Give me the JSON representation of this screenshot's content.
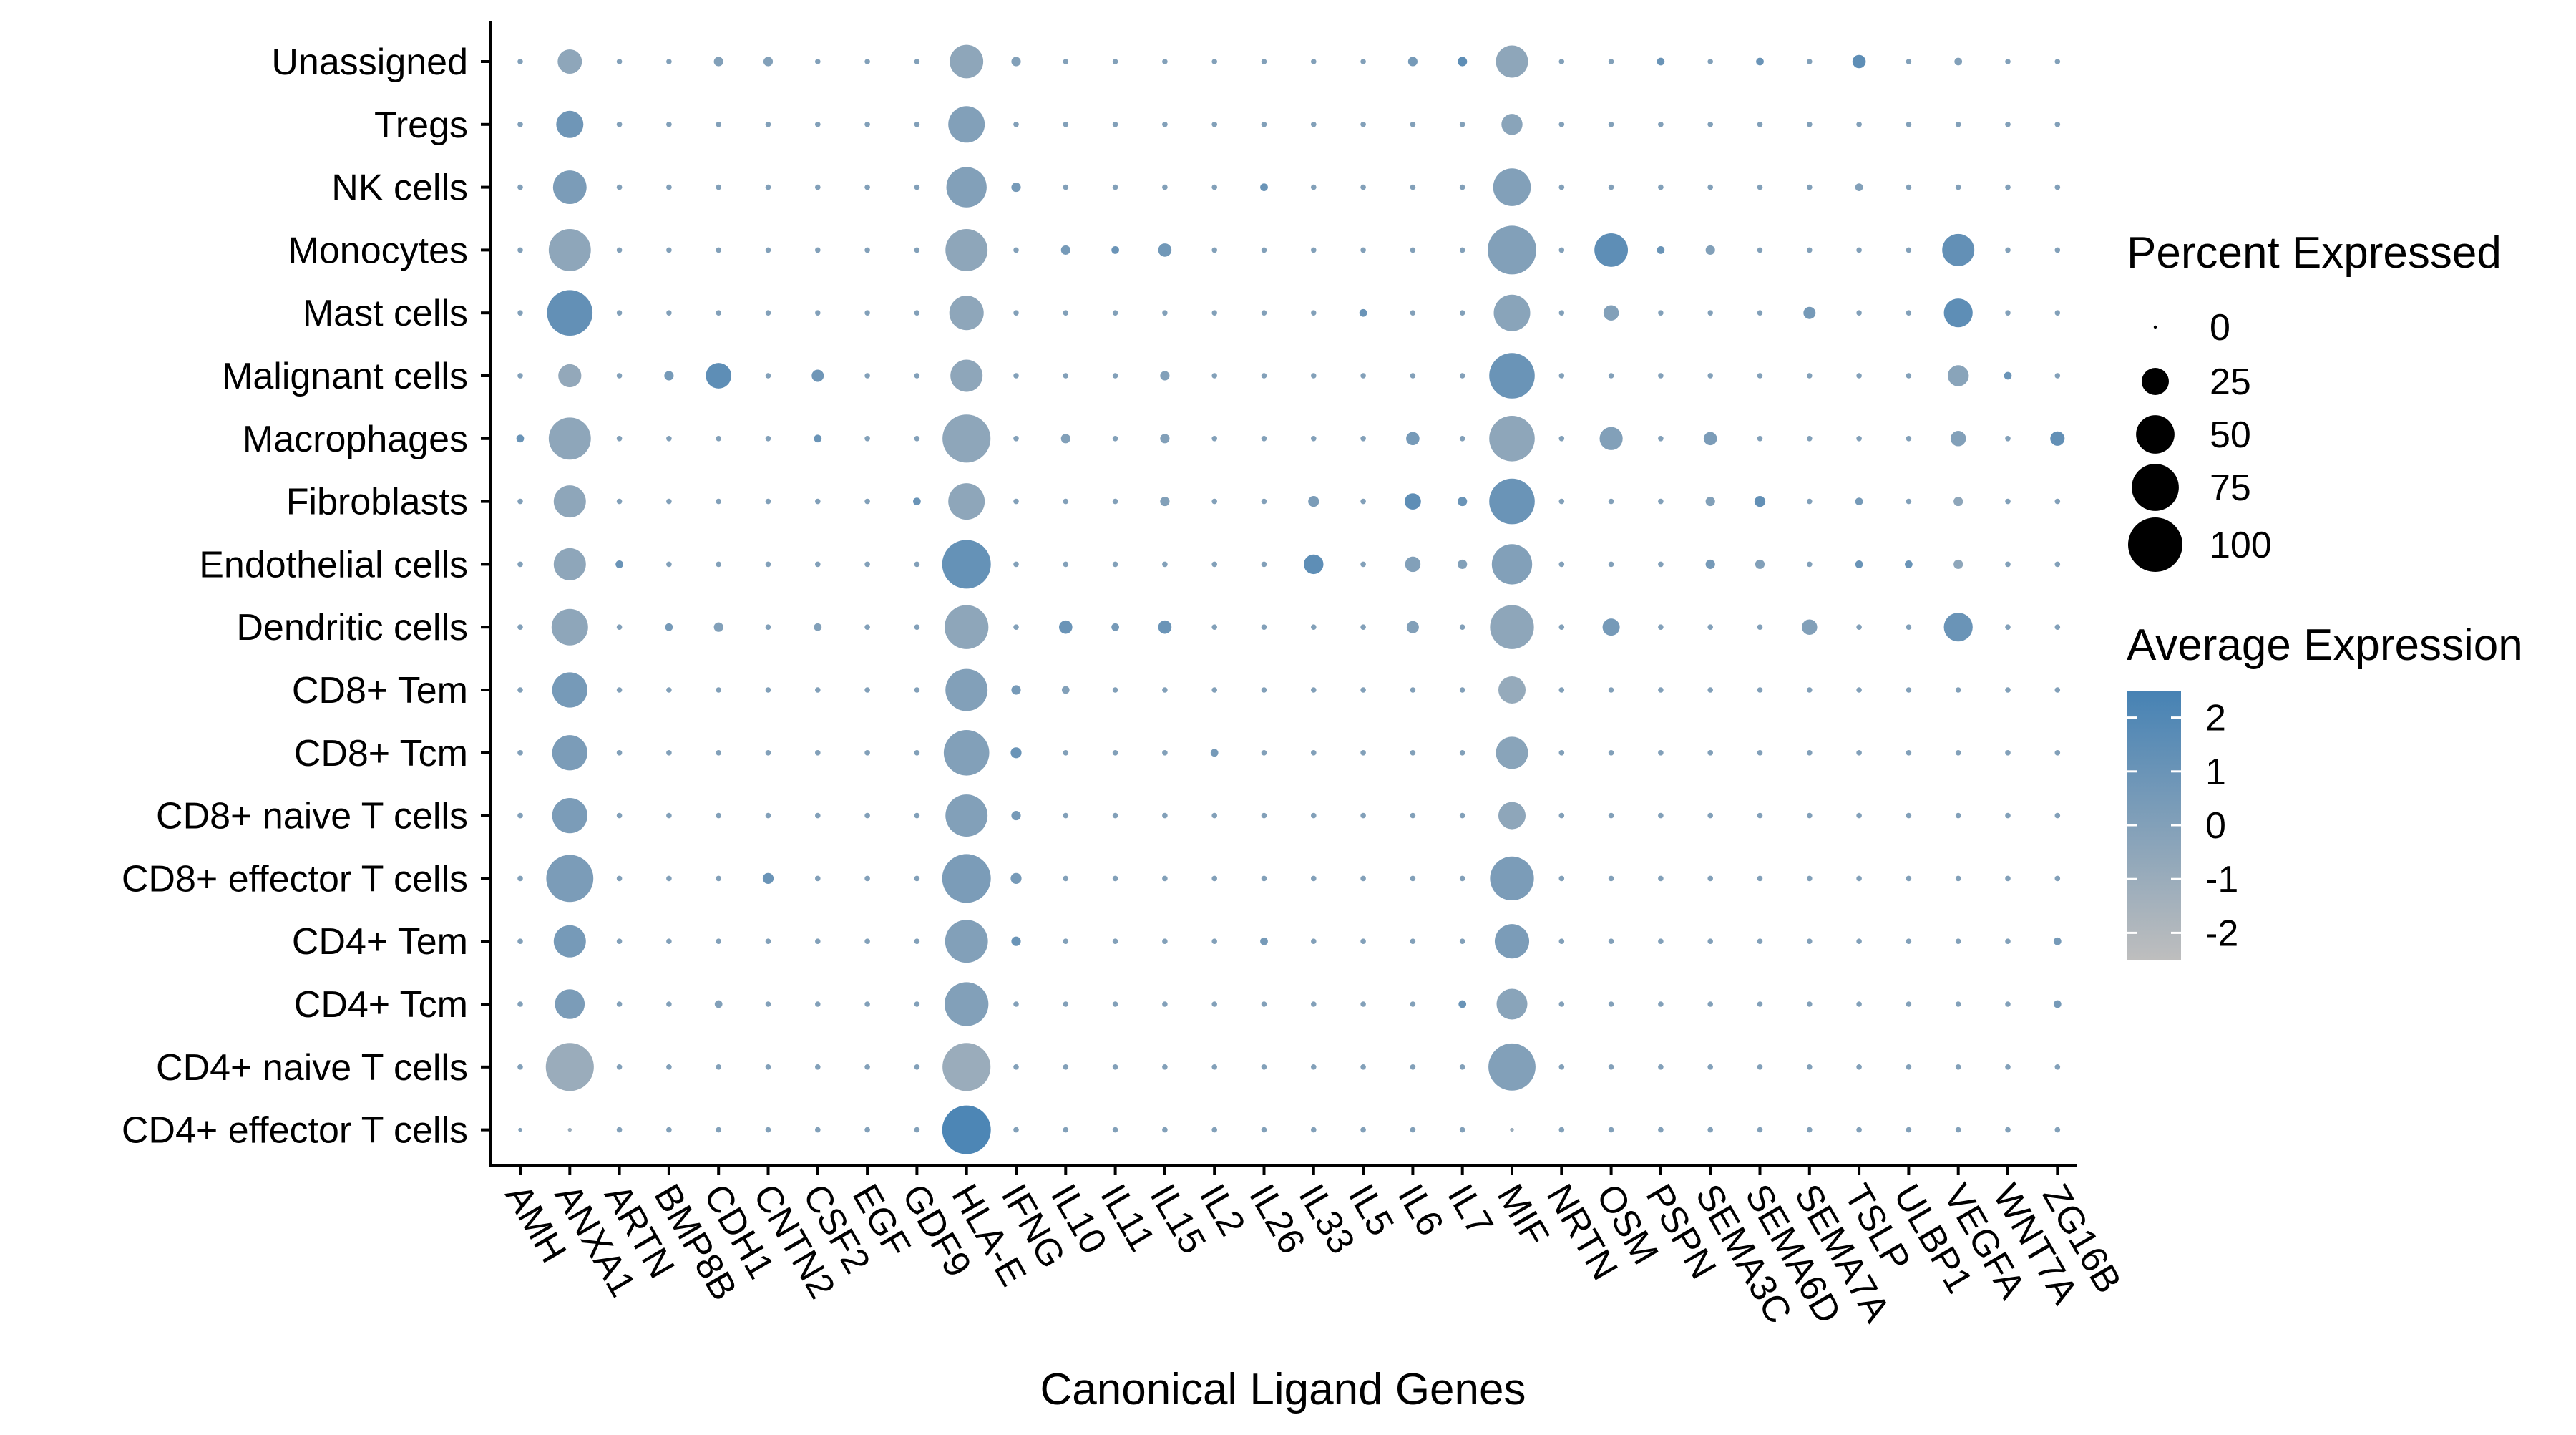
{
  "chart_data": {
    "type": "dotplot",
    "title": "",
    "xlabel": "Canonical Ligand Genes",
    "ylabel": "",
    "genes": [
      "AMH",
      "ANXA1",
      "ARTN",
      "BMP8B",
      "CDH1",
      "CNTN2",
      "CSF2",
      "EGF",
      "GDF9",
      "HLA-E",
      "IFNG",
      "IL10",
      "IL11",
      "IL15",
      "IL2",
      "IL26",
      "IL33",
      "IL5",
      "IL6",
      "IL7",
      "MIF",
      "NRTN",
      "OSM",
      "PSPN",
      "SEMA3C",
      "SEMA6D",
      "SEMA7A",
      "TSLP",
      "ULBP1",
      "VEGFA",
      "WNT7A",
      "ZG16B"
    ],
    "cell_types": [
      "Unassigned",
      "Tregs",
      "NK cells",
      "Monocytes",
      "Mast cells",
      "Malignant cells",
      "Macrophages",
      "Fibroblasts",
      "Endothelial cells",
      "Dendritic cells",
      "CD8+ Tem",
      "CD8+ Tcm",
      "CD8+ naive T cells",
      "CD8+ effector T cells",
      "CD4+ Tem",
      "CD4+ Tcm",
      "CD4+ naive T cells",
      "CD4+ effector T cells"
    ],
    "size_legend": {
      "title": "Percent Expressed",
      "breaks": [
        0,
        25,
        50,
        75,
        100
      ],
      "labels": [
        "0",
        "25",
        "50",
        "75",
        "100"
      ]
    },
    "color_legend": {
      "title": "Average Expression",
      "breaks": [
        2,
        1,
        0,
        -1,
        -2
      ],
      "labels": [
        "2",
        "1",
        "0",
        "-1",
        "-2"
      ],
      "range": [
        -2.5,
        2.5
      ],
      "low_color": "#BEBEBE",
      "high_color": "#4682B4"
    },
    "default_point": {
      "pct": 1,
      "avg": 0
    },
    "points": [
      {
        "cell": "Unassigned",
        "gene": "ANXA1",
        "pct": 20,
        "avg": -0.5
      },
      {
        "cell": "Unassigned",
        "gene": "CDH1",
        "pct": 3,
        "avg": 0
      },
      {
        "cell": "Unassigned",
        "gene": "CNTN2",
        "pct": 3,
        "avg": 0
      },
      {
        "cell": "Unassigned",
        "gene": "HLA-E",
        "pct": 38,
        "avg": -0.5
      },
      {
        "cell": "Unassigned",
        "gene": "IFNG",
        "pct": 3,
        "avg": 0
      },
      {
        "cell": "Unassigned",
        "gene": "IL6",
        "pct": 3,
        "avg": 0.5
      },
      {
        "cell": "Unassigned",
        "gene": "IL7",
        "pct": 3,
        "avg": 1.5
      },
      {
        "cell": "Unassigned",
        "gene": "MIF",
        "pct": 35,
        "avg": -0.5
      },
      {
        "cell": "Unassigned",
        "gene": "PSPN",
        "pct": 2,
        "avg": 1
      },
      {
        "cell": "Unassigned",
        "gene": "SEMA6D",
        "pct": 2,
        "avg": 1
      },
      {
        "cell": "Unassigned",
        "gene": "TSLP",
        "pct": 6,
        "avg": 1.5
      },
      {
        "cell": "Unassigned",
        "gene": "VEGFA",
        "pct": 2,
        "avg": 0
      },
      {
        "cell": "Tregs",
        "gene": "ANXA1",
        "pct": 25,
        "avg": 0.8
      },
      {
        "cell": "Tregs",
        "gene": "HLA-E",
        "pct": 45,
        "avg": 0
      },
      {
        "cell": "Tregs",
        "gene": "MIF",
        "pct": 15,
        "avg": -0.3
      },
      {
        "cell": "NK cells",
        "gene": "ANXA1",
        "pct": 38,
        "avg": 0.3
      },
      {
        "cell": "NK cells",
        "gene": "HLA-E",
        "pct": 55,
        "avg": 0
      },
      {
        "cell": "NK cells",
        "gene": "IFNG",
        "pct": 3,
        "avg": 0.5
      },
      {
        "cell": "NK cells",
        "gene": "IL26",
        "pct": 2,
        "avg": 1
      },
      {
        "cell": "NK cells",
        "gene": "MIF",
        "pct": 48,
        "avg": 0
      },
      {
        "cell": "NK cells",
        "gene": "TSLP",
        "pct": 2,
        "avg": 0
      },
      {
        "cell": "Monocytes",
        "gene": "ANXA1",
        "pct": 60,
        "avg": -0.5
      },
      {
        "cell": "Monocytes",
        "gene": "HLA-E",
        "pct": 60,
        "avg": -0.5
      },
      {
        "cell": "Monocytes",
        "gene": "IL10",
        "pct": 3,
        "avg": 0.5
      },
      {
        "cell": "Monocytes",
        "gene": "IL11",
        "pct": 2,
        "avg": 1
      },
      {
        "cell": "Monocytes",
        "gene": "IL15",
        "pct": 6,
        "avg": 0.7
      },
      {
        "cell": "Monocytes",
        "gene": "MIF",
        "pct": 80,
        "avg": 0
      },
      {
        "cell": "Monocytes",
        "gene": "OSM",
        "pct": 38,
        "avg": 1.5
      },
      {
        "cell": "Monocytes",
        "gene": "PSPN",
        "pct": 2,
        "avg": 1
      },
      {
        "cell": "Monocytes",
        "gene": "SEMA3C",
        "pct": 3,
        "avg": 0
      },
      {
        "cell": "Monocytes",
        "gene": "VEGFA",
        "pct": 35,
        "avg": 1.3
      },
      {
        "cell": "Mast cells",
        "gene": "ANXA1",
        "pct": 70,
        "avg": 1.3
      },
      {
        "cell": "Mast cells",
        "gene": "HLA-E",
        "pct": 40,
        "avg": -0.5
      },
      {
        "cell": "Mast cells",
        "gene": "IL5",
        "pct": 2,
        "avg": 1
      },
      {
        "cell": "Mast cells",
        "gene": "MIF",
        "pct": 45,
        "avg": -0.3
      },
      {
        "cell": "Mast cells",
        "gene": "OSM",
        "pct": 8,
        "avg": 0
      },
      {
        "cell": "Mast cells",
        "gene": "SEMA7A",
        "pct": 5,
        "avg": 0.5
      },
      {
        "cell": "Mast cells",
        "gene": "VEGFA",
        "pct": 28,
        "avg": 1.5
      },
      {
        "cell": "Malignant cells",
        "gene": "ANXA1",
        "pct": 18,
        "avg": -0.7
      },
      {
        "cell": "Malignant cells",
        "gene": "BMP8B",
        "pct": 3,
        "avg": 0.5
      },
      {
        "cell": "Malignant cells",
        "gene": "CDH1",
        "pct": 22,
        "avg": 1.5
      },
      {
        "cell": "Malignant cells",
        "gene": "CSF2",
        "pct": 5,
        "avg": 0.8
      },
      {
        "cell": "Malignant cells",
        "gene": "HLA-E",
        "pct": 35,
        "avg": -0.5
      },
      {
        "cell": "Malignant cells",
        "gene": "IL15",
        "pct": 3,
        "avg": 0
      },
      {
        "cell": "Malignant cells",
        "gene": "MIF",
        "pct": 70,
        "avg": 1
      },
      {
        "cell": "Malignant cells",
        "gene": "VEGFA",
        "pct": 15,
        "avg": -0.3
      },
      {
        "cell": "Malignant cells",
        "gene": "WNT7A",
        "pct": 2,
        "avg": 1
      },
      {
        "cell": "Macrophages",
        "gene": "AMH",
        "pct": 2,
        "avg": 1
      },
      {
        "cell": "Macrophages",
        "gene": "ANXA1",
        "pct": 60,
        "avg": -0.5
      },
      {
        "cell": "Macrophages",
        "gene": "CSF2",
        "pct": 2,
        "avg": 1
      },
      {
        "cell": "Macrophages",
        "gene": "HLA-E",
        "pct": 78,
        "avg": -0.5
      },
      {
        "cell": "Macrophages",
        "gene": "IL10",
        "pct": 3,
        "avg": 0
      },
      {
        "cell": "Macrophages",
        "gene": "IL15",
        "pct": 3,
        "avg": 0
      },
      {
        "cell": "Macrophages",
        "gene": "IL6",
        "pct": 6,
        "avg": 0.5
      },
      {
        "cell": "Macrophages",
        "gene": "MIF",
        "pct": 70,
        "avg": -0.5
      },
      {
        "cell": "Macrophages",
        "gene": "OSM",
        "pct": 18,
        "avg": 0
      },
      {
        "cell": "Macrophages",
        "gene": "SEMA3C",
        "pct": 6,
        "avg": 0.3
      },
      {
        "cell": "Macrophages",
        "gene": "VEGFA",
        "pct": 8,
        "avg": 0
      },
      {
        "cell": "Macrophages",
        "gene": "ZG16B",
        "pct": 7,
        "avg": 1.3
      },
      {
        "cell": "Fibroblasts",
        "gene": "ANXA1",
        "pct": 35,
        "avg": -0.5
      },
      {
        "cell": "Fibroblasts",
        "gene": "GDF9",
        "pct": 2,
        "avg": 1
      },
      {
        "cell": "Fibroblasts",
        "gene": "HLA-E",
        "pct": 45,
        "avg": -0.5
      },
      {
        "cell": "Fibroblasts",
        "gene": "IL15",
        "pct": 3,
        "avg": 0
      },
      {
        "cell": "Fibroblasts",
        "gene": "IL33",
        "pct": 4,
        "avg": 0.3
      },
      {
        "cell": "Fibroblasts",
        "gene": "IL6",
        "pct": 9,
        "avg": 1.5
      },
      {
        "cell": "Fibroblasts",
        "gene": "IL7",
        "pct": 3,
        "avg": 1
      },
      {
        "cell": "Fibroblasts",
        "gene": "MIF",
        "pct": 70,
        "avg": 1
      },
      {
        "cell": "Fibroblasts",
        "gene": "SEMA3C",
        "pct": 3,
        "avg": 0
      },
      {
        "cell": "Fibroblasts",
        "gene": "SEMA6D",
        "pct": 4,
        "avg": 1.3
      },
      {
        "cell": "Fibroblasts",
        "gene": "TSLP",
        "pct": 2,
        "avg": 0.5
      },
      {
        "cell": "Fibroblasts",
        "gene": "VEGFA",
        "pct": 3,
        "avg": -0.5
      },
      {
        "cell": "Endothelial cells",
        "gene": "ANXA1",
        "pct": 35,
        "avg": -0.5
      },
      {
        "cell": "Endothelial cells",
        "gene": "ARTN",
        "pct": 2,
        "avg": 1
      },
      {
        "cell": "Endothelial cells",
        "gene": "HLA-E",
        "pct": 80,
        "avg": 1.2
      },
      {
        "cell": "Endothelial cells",
        "gene": "IL33",
        "pct": 13,
        "avg": 1.5
      },
      {
        "cell": "Endothelial cells",
        "gene": "IL6",
        "pct": 8,
        "avg": 0
      },
      {
        "cell": "Endothelial cells",
        "gene": "IL7",
        "pct": 3,
        "avg": 0
      },
      {
        "cell": "Endothelial cells",
        "gene": "MIF",
        "pct": 55,
        "avg": 0
      },
      {
        "cell": "Endothelial cells",
        "gene": "SEMA3C",
        "pct": 3,
        "avg": 0.5
      },
      {
        "cell": "Endothelial cells",
        "gene": "SEMA6D",
        "pct": 3,
        "avg": 0
      },
      {
        "cell": "Endothelial cells",
        "gene": "TSLP",
        "pct": 2,
        "avg": 1
      },
      {
        "cell": "Endothelial cells",
        "gene": "ULBP1",
        "pct": 2,
        "avg": 1
      },
      {
        "cell": "Endothelial cells",
        "gene": "VEGFA",
        "pct": 3,
        "avg": -0.5
      },
      {
        "cell": "Dendritic cells",
        "gene": "ANXA1",
        "pct": 45,
        "avg": -0.5
      },
      {
        "cell": "Dendritic cells",
        "gene": "BMP8B",
        "pct": 2,
        "avg": 0.5
      },
      {
        "cell": "Dendritic cells",
        "gene": "CDH1",
        "pct": 3,
        "avg": 0
      },
      {
        "cell": "Dendritic cells",
        "gene": "CSF2",
        "pct": 2,
        "avg": 0
      },
      {
        "cell": "Dendritic cells",
        "gene": "HLA-E",
        "pct": 65,
        "avg": -0.5
      },
      {
        "cell": "Dendritic cells",
        "gene": "IL10",
        "pct": 6,
        "avg": 1
      },
      {
        "cell": "Dendritic cells",
        "gene": "IL11",
        "pct": 2,
        "avg": 0.5
      },
      {
        "cell": "Dendritic cells",
        "gene": "IL15",
        "pct": 6,
        "avg": 1
      },
      {
        "cell": "Dendritic cells",
        "gene": "IL6",
        "pct": 5,
        "avg": 0
      },
      {
        "cell": "Dendritic cells",
        "gene": "MIF",
        "pct": 65,
        "avg": -0.5
      },
      {
        "cell": "Dendritic cells",
        "gene": "OSM",
        "pct": 10,
        "avg": 0.5
      },
      {
        "cell": "Dendritic cells",
        "gene": "SEMA7A",
        "pct": 8,
        "avg": 0
      },
      {
        "cell": "Dendritic cells",
        "gene": "VEGFA",
        "pct": 28,
        "avg": 1
      },
      {
        "cell": "CD8+ Tem",
        "gene": "ANXA1",
        "pct": 42,
        "avg": 0.5
      },
      {
        "cell": "CD8+ Tem",
        "gene": "HLA-E",
        "pct": 60,
        "avg": 0
      },
      {
        "cell": "CD8+ Tem",
        "gene": "IFNG",
        "pct": 3,
        "avg": 0.5
      },
      {
        "cell": "CD8+ Tem",
        "gene": "IL10",
        "pct": 2,
        "avg": 0
      },
      {
        "cell": "CD8+ Tem",
        "gene": "MIF",
        "pct": 25,
        "avg": -0.8
      },
      {
        "cell": "CD8+ Tcm",
        "gene": "ANXA1",
        "pct": 42,
        "avg": 0.3
      },
      {
        "cell": "CD8+ Tcm",
        "gene": "HLA-E",
        "pct": 70,
        "avg": 0
      },
      {
        "cell": "CD8+ Tcm",
        "gene": "IFNG",
        "pct": 4,
        "avg": 1
      },
      {
        "cell": "CD8+ Tcm",
        "gene": "IL2",
        "pct": 2,
        "avg": 0.5
      },
      {
        "cell": "CD8+ Tcm",
        "gene": "MIF",
        "pct": 35,
        "avg": -0.3
      },
      {
        "cell": "CD8+ naive T cells",
        "gene": "ANXA1",
        "pct": 42,
        "avg": 0.3
      },
      {
        "cell": "CD8+ naive T cells",
        "gene": "HLA-E",
        "pct": 60,
        "avg": 0
      },
      {
        "cell": "CD8+ naive T cells",
        "gene": "IFNG",
        "pct": 3,
        "avg": 0.5
      },
      {
        "cell": "CD8+ naive T cells",
        "gene": "MIF",
        "pct": 25,
        "avg": -0.5
      },
      {
        "cell": "CD8+ effector T cells",
        "gene": "ANXA1",
        "pct": 75,
        "avg": 0.3
      },
      {
        "cell": "CD8+ effector T cells",
        "gene": "CNTN2",
        "pct": 4,
        "avg": 1
      },
      {
        "cell": "CD8+ effector T cells",
        "gene": "HLA-E",
        "pct": 80,
        "avg": 0.3
      },
      {
        "cell": "CD8+ effector T cells",
        "gene": "IFNG",
        "pct": 4,
        "avg": 0.5
      },
      {
        "cell": "CD8+ effector T cells",
        "gene": "MIF",
        "pct": 65,
        "avg": 0.3
      },
      {
        "cell": "CD4+ Tem",
        "gene": "ANXA1",
        "pct": 35,
        "avg": 0.5
      },
      {
        "cell": "CD4+ Tem",
        "gene": "HLA-E",
        "pct": 62,
        "avg": 0
      },
      {
        "cell": "CD4+ Tem",
        "gene": "IFNG",
        "pct": 3,
        "avg": 1
      },
      {
        "cell": "CD4+ Tem",
        "gene": "IL26",
        "pct": 2,
        "avg": 0.5
      },
      {
        "cell": "CD4+ Tem",
        "gene": "MIF",
        "pct": 40,
        "avg": 0.3
      },
      {
        "cell": "CD4+ Tem",
        "gene": "ZG16B",
        "pct": 2,
        "avg": 0.5
      },
      {
        "cell": "CD4+ Tcm",
        "gene": "ANXA1",
        "pct": 30,
        "avg": 0.3
      },
      {
        "cell": "CD4+ Tcm",
        "gene": "CDH1",
        "pct": 2,
        "avg": 0
      },
      {
        "cell": "CD4+ Tcm",
        "gene": "HLA-E",
        "pct": 65,
        "avg": 0
      },
      {
        "cell": "CD4+ Tcm",
        "gene": "IL7",
        "pct": 2,
        "avg": 1
      },
      {
        "cell": "CD4+ Tcm",
        "gene": "MIF",
        "pct": 32,
        "avg": -0.3
      },
      {
        "cell": "CD4+ Tcm",
        "gene": "ZG16B",
        "pct": 2,
        "avg": 0.5
      },
      {
        "cell": "CD4+ naive T cells",
        "gene": "ANXA1",
        "pct": 78,
        "avg": -1
      },
      {
        "cell": "CD4+ naive T cells",
        "gene": "HLA-E",
        "pct": 78,
        "avg": -1
      },
      {
        "cell": "CD4+ naive T cells",
        "gene": "MIF",
        "pct": 75,
        "avg": 0
      },
      {
        "cell": "CD4+ effector T cells",
        "gene": "AMH",
        "pct": 0.5,
        "avg": 0
      },
      {
        "cell": "CD4+ effector T cells",
        "gene": "ANXA1",
        "pct": 0.5,
        "avg": -1
      },
      {
        "cell": "CD4+ effector T cells",
        "gene": "HLA-E",
        "pct": 80,
        "avg": 2.2
      },
      {
        "cell": "CD4+ effector T cells",
        "gene": "MIF",
        "pct": 0.5,
        "avg": -1
      }
    ]
  }
}
